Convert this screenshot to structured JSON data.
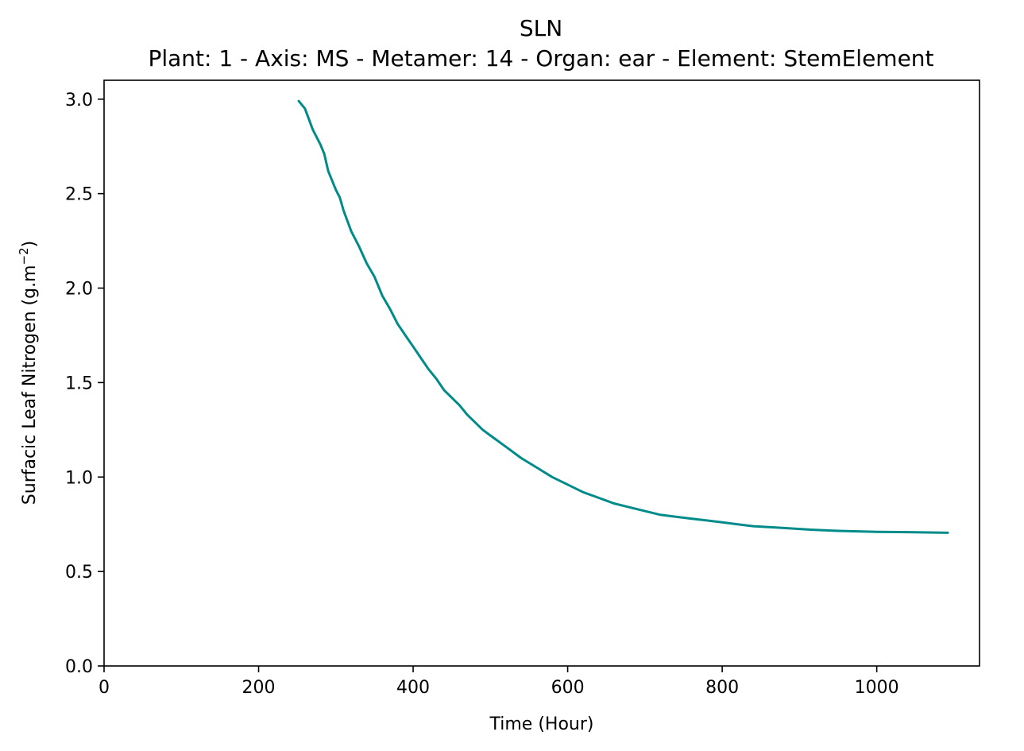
{
  "chart_data": {
    "type": "line",
    "title": "SLN",
    "subtitle": "Plant: 1 - Axis: MS - Metamer: 14 - Organ: ear - Element: StemElement",
    "xlabel": "Time (Hour)",
    "ylabel_main": "Surfacic Leaf Nitrogen (g.m",
    "ylabel_sup": "−2",
    "ylabel_end": ")",
    "xlim": [
      0,
      1133
    ],
    "ylim": [
      0,
      3.1
    ],
    "xticks": [
      0,
      200,
      400,
      600,
      800,
      1000
    ],
    "xtick_labels": [
      "0",
      "200",
      "400",
      "600",
      "800",
      "1000"
    ],
    "yticks": [
      0,
      0.5,
      1.0,
      1.5,
      2.0,
      2.5,
      3.0
    ],
    "ytick_labels": [
      "0.0",
      "0.5",
      "1.0",
      "1.5",
      "2.0",
      "2.5",
      "3.0"
    ],
    "grid": false,
    "line_color": "#008b8b",
    "series": [
      {
        "x": [
          252,
          260,
          270,
          280,
          285,
          290,
          300,
          305,
          310,
          320,
          330,
          340,
          350,
          360,
          370,
          380,
          390,
          400,
          410,
          420,
          430,
          440,
          450,
          460,
          470,
          480,
          490,
          500,
          520,
          540,
          560,
          580,
          600,
          620,
          640,
          660,
          680,
          700,
          720,
          740,
          760,
          780,
          800,
          820,
          840,
          860,
          880,
          900,
          920,
          950,
          1000,
          1050,
          1092
        ],
        "y": [
          2.99,
          2.95,
          2.84,
          2.76,
          2.71,
          2.62,
          2.52,
          2.48,
          2.41,
          2.3,
          2.22,
          2.13,
          2.06,
          1.96,
          1.89,
          1.81,
          1.75,
          1.69,
          1.63,
          1.57,
          1.52,
          1.46,
          1.42,
          1.38,
          1.33,
          1.29,
          1.25,
          1.22,
          1.16,
          1.1,
          1.05,
          1.0,
          0.96,
          0.92,
          0.89,
          0.86,
          0.84,
          0.82,
          0.8,
          0.79,
          0.78,
          0.77,
          0.76,
          0.75,
          0.74,
          0.735,
          0.73,
          0.725,
          0.72,
          0.715,
          0.71,
          0.708,
          0.705
        ]
      }
    ]
  }
}
